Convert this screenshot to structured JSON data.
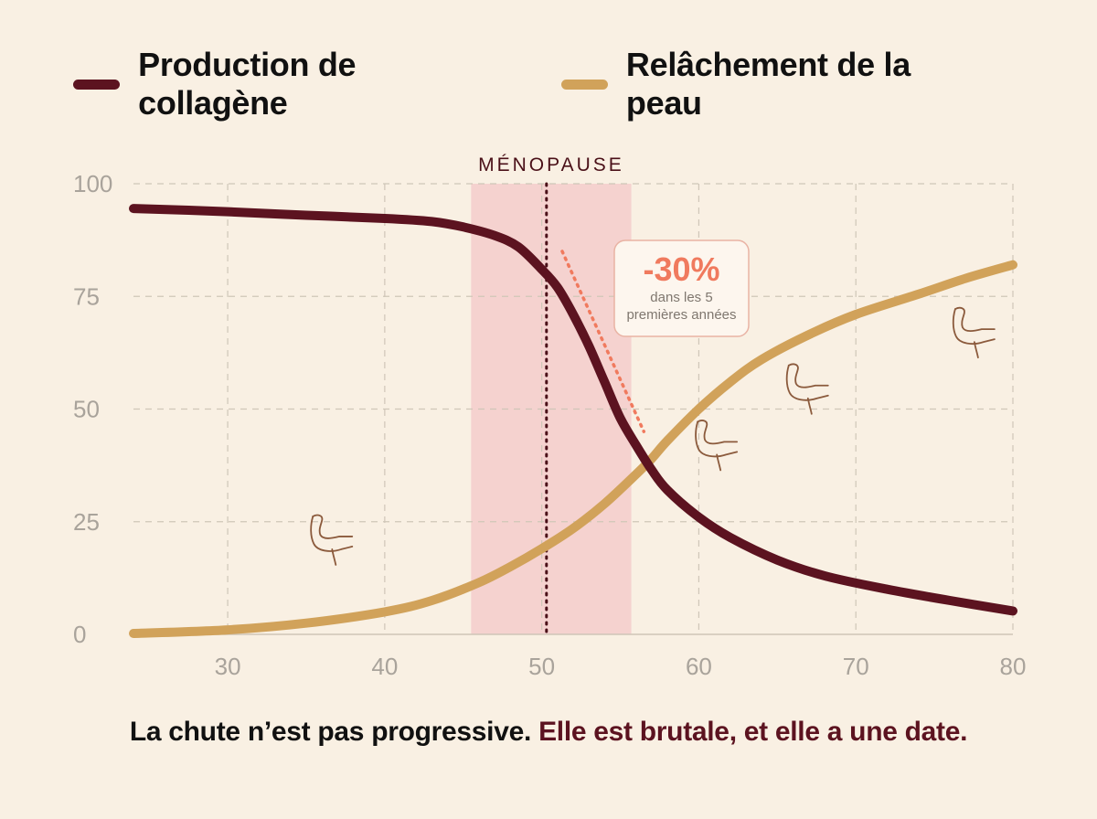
{
  "legend": [
    {
      "label": "Production de collagène",
      "color": "#5c1320"
    },
    {
      "label": "Relâchement de la peau",
      "color": "#d1a25a"
    }
  ],
  "caption": {
    "part1": "La chute n’est pas progressive.",
    "part2": "Elle est brutale, et elle a une date."
  },
  "chart_data": {
    "type": "line",
    "xlim": [
      24,
      80
    ],
    "ylim": [
      0,
      100
    ],
    "x_ticks": [
      30,
      40,
      50,
      60,
      70,
      80
    ],
    "y_ticks": [
      0,
      25,
      50,
      75,
      100
    ],
    "grid": true,
    "legend_position": "top",
    "series": [
      {
        "name": "Production de collagène",
        "color": "#5c1320",
        "points": [
          [
            24,
            94.5
          ],
          [
            30,
            93.8
          ],
          [
            35,
            93.0
          ],
          [
            40,
            92.3
          ],
          [
            43,
            91.6
          ],
          [
            45,
            90.4
          ],
          [
            47,
            88.5
          ],
          [
            48.5,
            86.0
          ],
          [
            50,
            81.0
          ],
          [
            51,
            77.0
          ],
          [
            52,
            71.0
          ],
          [
            53,
            64.0
          ],
          [
            54,
            56.0
          ],
          [
            55,
            48.0
          ],
          [
            56,
            42.0
          ],
          [
            57,
            36.5
          ],
          [
            58,
            32.0
          ],
          [
            60,
            26.0
          ],
          [
            62,
            21.5
          ],
          [
            65,
            16.5
          ],
          [
            68,
            13.0
          ],
          [
            72,
            10.0
          ],
          [
            76,
            7.5
          ],
          [
            80,
            5.2
          ]
        ]
      },
      {
        "name": "Relâchement de la peau",
        "color": "#d1a25a",
        "points": [
          [
            24,
            0.2
          ],
          [
            30,
            1.0
          ],
          [
            35,
            2.5
          ],
          [
            40,
            5.0
          ],
          [
            43,
            7.5
          ],
          [
            46,
            11.5
          ],
          [
            48,
            15.0
          ],
          [
            50,
            19.0
          ],
          [
            52,
            23.5
          ],
          [
            54,
            29.0
          ],
          [
            56,
            35.5
          ],
          [
            57,
            39.0
          ],
          [
            58,
            43.0
          ],
          [
            60,
            50.0
          ],
          [
            62,
            56.0
          ],
          [
            64,
            61.0
          ],
          [
            67,
            66.5
          ],
          [
            70,
            71.0
          ],
          [
            74,
            75.5
          ],
          [
            77,
            79.0
          ],
          [
            80,
            82.0
          ]
        ]
      }
    ],
    "menopause": {
      "label": "MÉNOPAUSE",
      "x_start": 45.5,
      "x_end": 55.7,
      "x_line": 50.3,
      "color": "#f5cccb"
    },
    "annotation": {
      "value": "-30%",
      "text_line1": "dans les 5",
      "text_line2": "premières années",
      "color": "#f07a5e",
      "slope_from": [
        51.3,
        85
      ],
      "slope_to": [
        56.5,
        45
      ]
    },
    "arm_icons": [
      {
        "x": 36.3,
        "y": 20.5
      },
      {
        "x": 60.8,
        "y": 41.5
      },
      {
        "x": 66.6,
        "y": 54.0
      },
      {
        "x": 77.2,
        "y": 66.5
      }
    ]
  }
}
